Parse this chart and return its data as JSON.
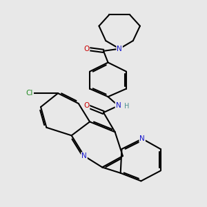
{
  "background_color": "#e8e8e8",
  "bond_color": "#000000",
  "bond_lw": 1.5,
  "atom_colors": {
    "N": "#1414cc",
    "O": "#cc0000",
    "Cl": "#228B22",
    "NH": "#1414cc",
    "H": "#4a9090"
  },
  "font_size": 7.5,
  "fig_width": 3.0,
  "fig_height": 3.0,
  "dpi": 100
}
